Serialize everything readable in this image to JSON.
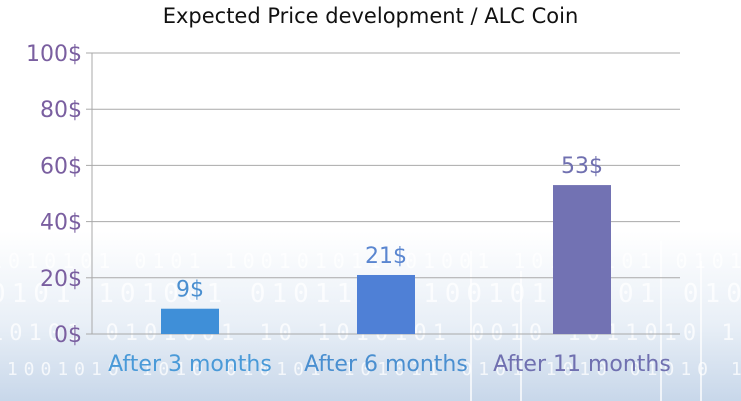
{
  "chart_data": {
    "type": "bar",
    "title": "Expected Price development / ALC Coin",
    "categories": [
      "After 3 months",
      "After 6 months",
      "After 11 months"
    ],
    "values": [
      9,
      21,
      53
    ],
    "data_labels": [
      "9$",
      "21$",
      "53$"
    ],
    "bar_colors": [
      "#3f8fd8",
      "#4f80d6",
      "#7272b3"
    ],
    "label_colors": [
      "#4a8fd0",
      "#5a86d0",
      "#7070b0"
    ],
    "category_label_colors": [
      "#4a9ad8",
      "#4a8fd0",
      "#7070b0"
    ],
    "ylim": [
      0,
      100
    ],
    "yticks": [
      "0$",
      "20$",
      "40$",
      "60$",
      "80$",
      "100$"
    ],
    "ytick_values": [
      0,
      20,
      40,
      60,
      80,
      100
    ],
    "ytick_color": "#7a5fa0",
    "grid": true,
    "legend": "none"
  }
}
